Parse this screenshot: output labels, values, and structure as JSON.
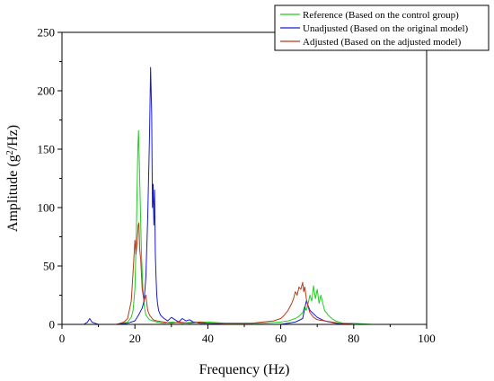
{
  "chart_data": {
    "type": "line",
    "xlabel": "Frequency (Hz)",
    "ylabel": {
      "pre": "Amplitude (g",
      "sup": "2",
      "post": "/Hz)"
    },
    "xlim": [
      0,
      100
    ],
    "ylim": [
      0,
      250
    ],
    "xticks": [
      0,
      20,
      40,
      60,
      80,
      100
    ],
    "yticks": [
      0,
      50,
      100,
      150,
      200,
      250
    ],
    "grid": false,
    "legend_position": "top-right",
    "series": [
      {
        "name": "Reference (Based on the control group)",
        "color": "#22cc22",
        "x": [
          0,
          15,
          18,
          19,
          19.5,
          20,
          20.4,
          20.8,
          21.0,
          21.2,
          21.5,
          21.8,
          22.2,
          22.6,
          23,
          24,
          25,
          26,
          28,
          30,
          33,
          36,
          40,
          45,
          50,
          55,
          60,
          62,
          63,
          64,
          65,
          66,
          66.5,
          67,
          67.5,
          68,
          68.5,
          69,
          69.5,
          70,
          70.5,
          71,
          72,
          73,
          74,
          75,
          77,
          80,
          85,
          90,
          100
        ],
        "y": [
          0,
          0,
          2,
          6,
          12,
          30,
          80,
          150,
          166,
          140,
          100,
          60,
          30,
          15,
          8,
          4,
          3,
          2,
          1,
          2,
          1,
          2,
          2,
          1,
          1,
          1,
          2,
          3,
          4,
          5,
          7,
          10,
          15,
          12,
          18,
          25,
          20,
          33,
          22,
          30,
          18,
          25,
          12,
          8,
          5,
          3,
          1,
          1,
          0,
          0,
          0
        ]
      },
      {
        "name": "Unadjusted (Based on the original model)",
        "color": "#1a1acc",
        "x": [
          0,
          6,
          7,
          7.6,
          8.2,
          9,
          10,
          12,
          15,
          18,
          20,
          21,
          22,
          22.5,
          23,
          23.5,
          24,
          24.3,
          24.6,
          24.8,
          25.0,
          25.2,
          25.4,
          25.6,
          25.8,
          26.0,
          26.2,
          26.5,
          27,
          28,
          29,
          30,
          31,
          32,
          33,
          34,
          35,
          36,
          38,
          40,
          45,
          50,
          60,
          64,
          66,
          67,
          68,
          70,
          72,
          75,
          80,
          90,
          100
        ],
        "y": [
          0,
          0,
          2,
          5,
          2,
          1,
          0,
          0,
          0,
          1,
          3,
          8,
          14,
          20,
          40,
          90,
          160,
          220,
          180,
          100,
          120,
          85,
          115,
          60,
          40,
          25,
          18,
          12,
          8,
          5,
          3,
          6,
          4,
          2,
          5,
          3,
          4,
          2,
          1,
          1,
          0,
          0,
          0,
          2,
          5,
          20,
          12,
          6,
          3,
          1,
          0,
          0,
          0
        ]
      },
      {
        "name": "Adjusted (Based on the adjusted model)",
        "color": "#b83a1e",
        "x": [
          0,
          10,
          15,
          17,
          18,
          19,
          19.5,
          20,
          20.3,
          20.6,
          20.9,
          21.1,
          21.3,
          21.6,
          22,
          22.5,
          23,
          23.5,
          24,
          25,
          26,
          28,
          30,
          32,
          35,
          38,
          40,
          45,
          50,
          52,
          55,
          58,
          60,
          61,
          62,
          63,
          63.5,
          64,
          64.5,
          65,
          65.5,
          66,
          66.3,
          66.6,
          67,
          67.5,
          68,
          69,
          70,
          72,
          74,
          76,
          80,
          90,
          100
        ],
        "y": [
          0,
          0,
          0,
          2,
          5,
          20,
          45,
          72,
          60,
          70,
          85,
          87,
          65,
          55,
          30,
          20,
          25,
          12,
          8,
          4,
          3,
          2,
          1,
          2,
          1,
          2,
          1,
          1,
          1,
          1,
          2,
          3,
          5,
          8,
          12,
          18,
          22,
          28,
          25,
          32,
          30,
          36,
          28,
          32,
          22,
          15,
          10,
          6,
          4,
          3,
          2,
          1,
          0,
          0,
          0
        ]
      }
    ]
  }
}
